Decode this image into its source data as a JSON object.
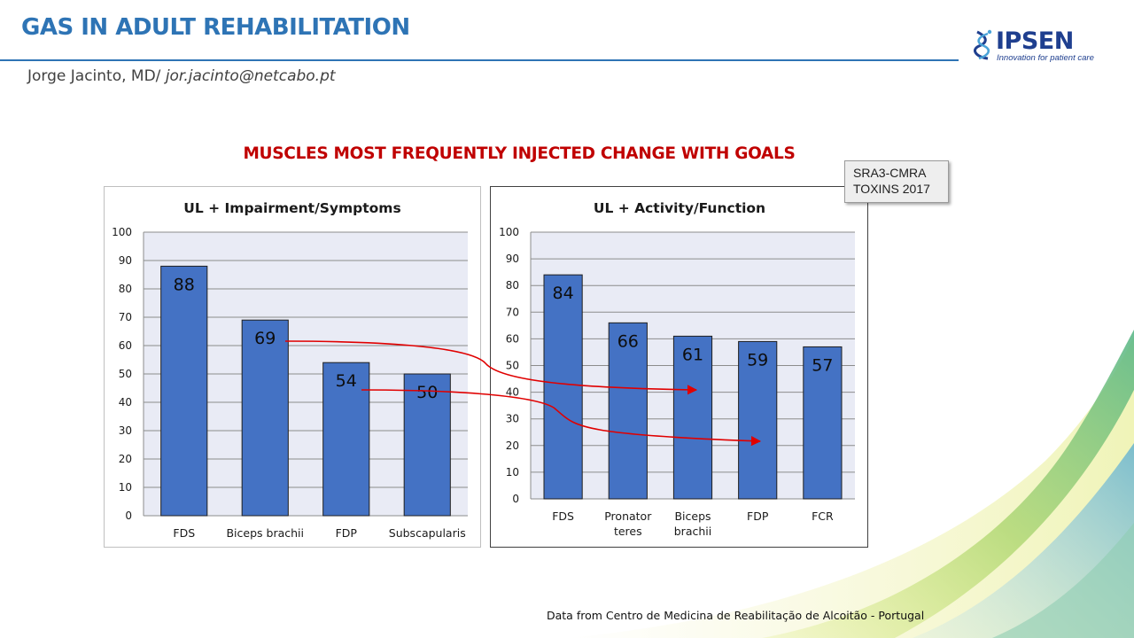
{
  "header": {
    "title": "GAS IN ADULT REHABILITATION",
    "author": "Jorge Jacinto, MD/ ",
    "email": "jor.jacinto@netcabo.pt"
  },
  "logo": {
    "name": "IPSEN",
    "tagline": "Innovation for patient care"
  },
  "slide_heading": "MUSCLES MOST FREQUENTLY INJECTED CHANGE WITH GOALS",
  "reference_box": {
    "line1": "SRA3-CMRA",
    "line2": "TOXINS 2017"
  },
  "footer": "Data from Centro de Medicina de Reabilitação de Alcoitão - Portugal",
  "colors": {
    "title_blue": "#2e74b5",
    "heading_red": "#c00000",
    "bar_fill": "#4472c4",
    "plot_bg": "#e9ebf5",
    "arrow_red": "#e00000"
  },
  "chart_data": [
    {
      "type": "bar",
      "title": "UL + Impairment/Symptoms",
      "categories": [
        "FDS",
        "Biceps brachii",
        "FDP",
        "Subscapularis"
      ],
      "values": [
        88,
        69,
        54,
        50
      ],
      "ylim": [
        0,
        100
      ],
      "yticks": [
        0,
        10,
        20,
        30,
        40,
        50,
        60,
        70,
        80,
        90,
        100
      ],
      "grid": true,
      "data_labels": true
    },
    {
      "type": "bar",
      "title": "UL + Activity/Function",
      "categories": [
        "FDS",
        "Pronator teres",
        "Biceps brachii",
        "FDP",
        "FCR"
      ],
      "values": [
        84,
        66,
        61,
        59,
        57
      ],
      "ylim": [
        0,
        100
      ],
      "yticks": [
        0,
        10,
        20,
        30,
        40,
        50,
        60,
        70,
        80,
        90,
        100
      ],
      "grid": true,
      "data_labels": true
    }
  ]
}
